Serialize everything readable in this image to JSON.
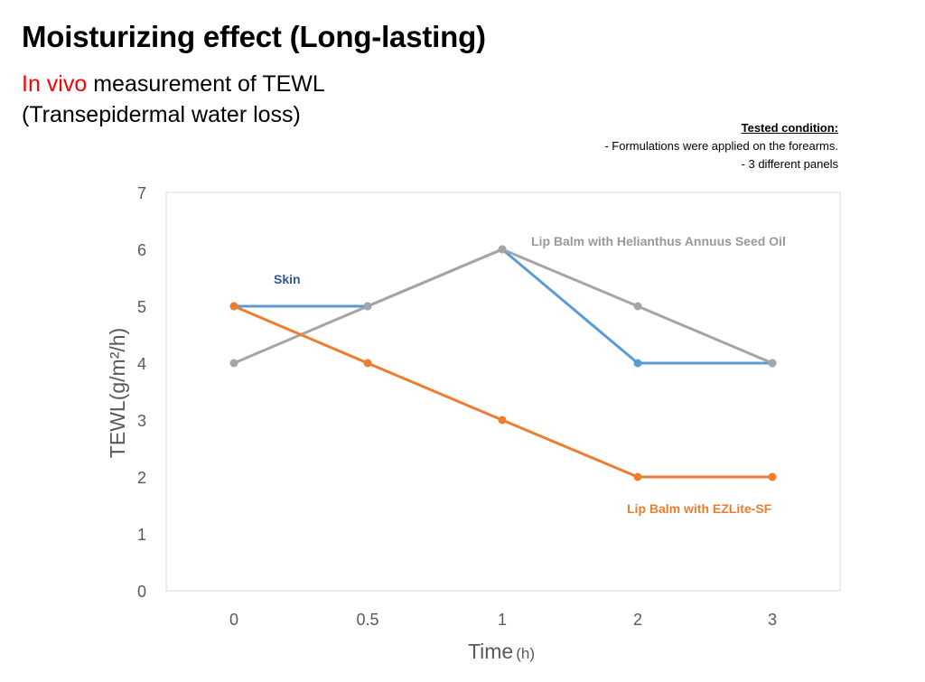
{
  "header": {
    "title": "Moisturizing effect (Long-lasting)",
    "subtitle_red": "In vivo",
    "subtitle_rest": " measurement of TEWL",
    "subtitle_line2": "(Transepidermal water loss)"
  },
  "conditions": {
    "heading": "Tested condition:",
    "items": [
      "-    Formulations were applied on the forearms.",
      "-    3 different panels"
    ]
  },
  "chart_data": {
    "type": "line",
    "categories": [
      "0",
      "0.5",
      "1",
      "2",
      "3"
    ],
    "ylim": [
      0,
      7
    ],
    "yticks": [
      "0",
      "1",
      "2",
      "3",
      "4",
      "5",
      "6",
      "7"
    ],
    "ylabel": "TEWL(g/m²/h)",
    "xlabel": "Time",
    "xlabel_unit": "(h)",
    "legend": "inline labels",
    "series": [
      {
        "name": "Skin",
        "values": [
          5,
          5,
          6,
          4,
          4
        ],
        "color": "#5b9bd5",
        "label_color": "#2f5597"
      },
      {
        "name": "Lip Balm with Helianthus Annuus Seed Oil",
        "values": [
          4,
          5,
          6,
          5,
          4
        ],
        "color": "#a5a5a5",
        "label_color": "#999999"
      },
      {
        "name": "Lip Balm with EZLite-SF",
        "values": [
          5,
          4,
          3,
          2,
          2
        ],
        "color": "#ed7d31",
        "label_color": "#ed7d31"
      }
    ]
  }
}
